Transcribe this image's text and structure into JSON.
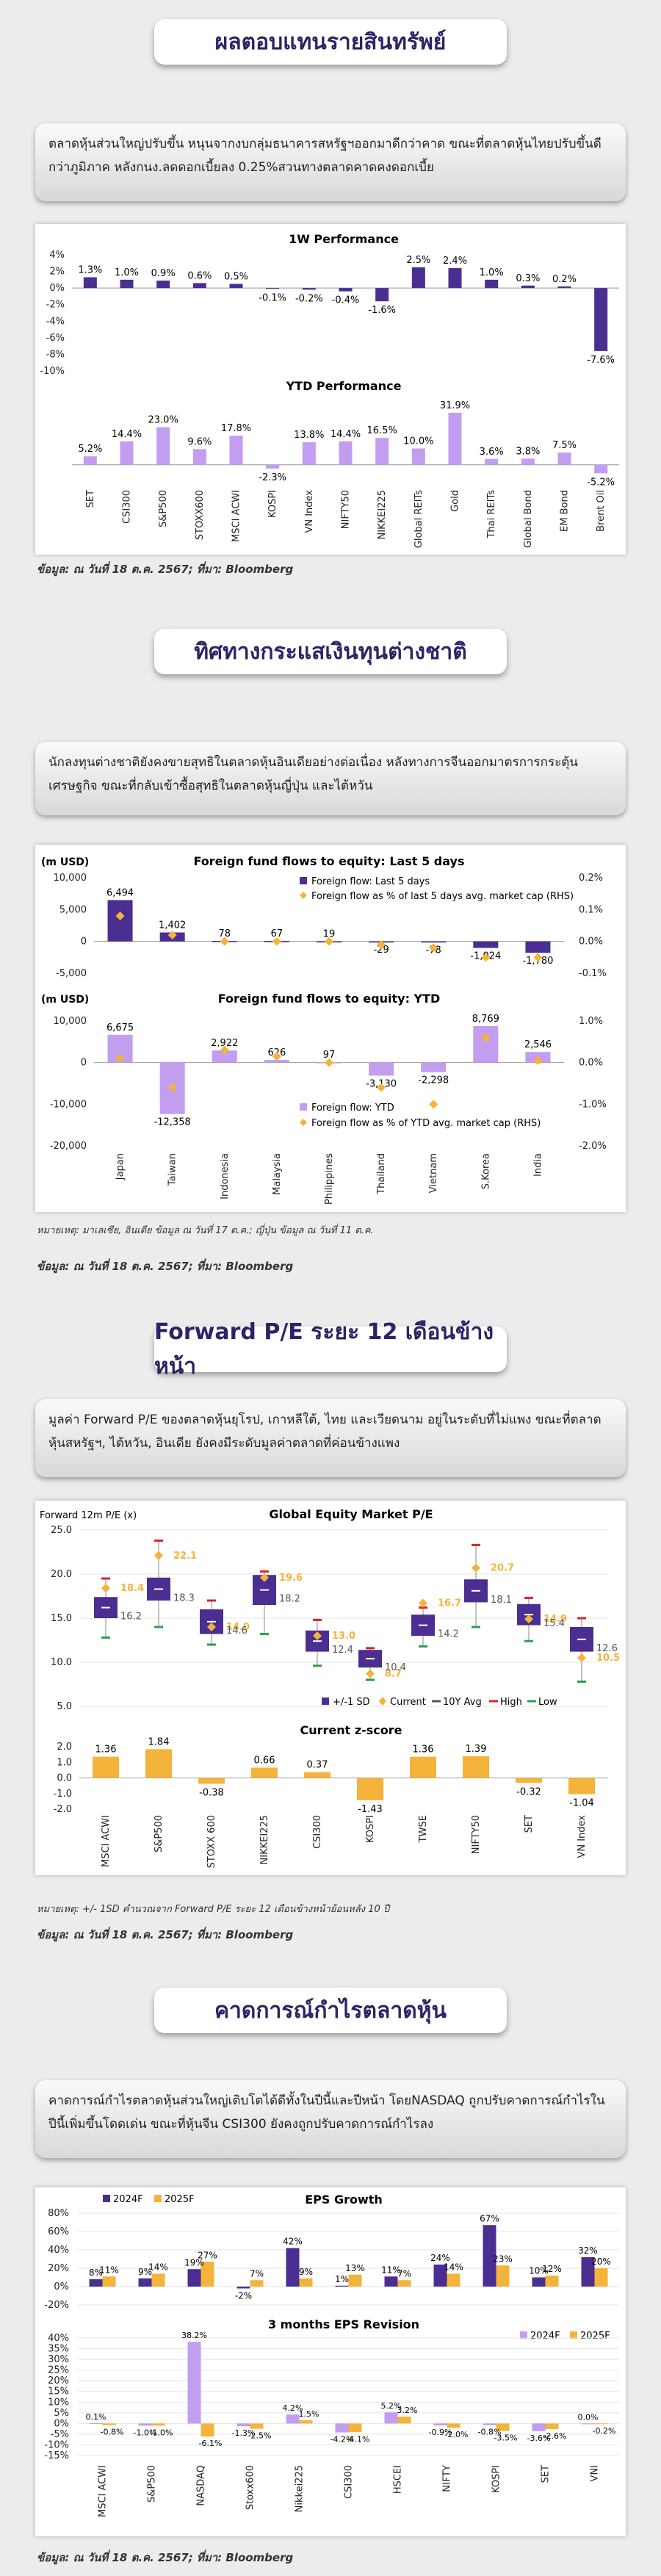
{
  "sections": {
    "s1_title": "ผลตอบแทนรายสินทรัพย์",
    "s1_desc": "ตลาดหุ้นส่วนใหญ่ปรับขึ้น หนุนจากงบกลุ่มธนาคารสหรัฐฯออกมาดีกว่าคาด ขณะที่ตลาดหุ้นไทยปรับขึ้นดีกว่าภูมิภาค หลังกนง.ลดดอกเบี้ยลง 0.25%สวนทางตลาดคาดคงดอกเบี้ย",
    "s1_source": "ข้อมูล: ณ วันที่ 18 ต.ค. 2567; ที่มา: Bloomberg",
    "s2_title": "ทิศทางกระแสเงินทุนต่างชาติ",
    "s2_desc": "นักลงทุนต่างชาติยังคงขายสุทธิในตลาดหุ้นอินเดียอย่างต่อเนื่อง หลังทางการจีนออกมาตรการกระตุ้นเศรษฐกิจ ขณะที่กลับเข้าซื้อสุทธิในตลาดหุ้นญี่ปุ่น และไต้หวัน",
    "s2_note": "หมายเหตุ: มาเลเซีย, อินเดีย ข้อมูล ณ วันที่ 17 ต.ค.; ญี่ปุ่น ข้อมูล ณ วันที่ 11 ต.ค.",
    "s2_source": "ข้อมูล: ณ วันที่ 18 ต.ค. 2567; ที่มา: Bloomberg",
    "s3_title": "Forward P/E ระยะ 12 เดือนข้างหน้า",
    "s3_desc": "มูลค่า Forward P/E ของตลาดหุ้นยุโรป, เกาหลีใต้, ไทย และเวียดนาม อยู่ในระดับที่ไม่แพง ขณะที่ตลาดหุ้นสหรัฐฯ, ไต้หวัน, อินเดีย ยังคงมีระดับมูลค่าตลาดที่ค่อนข้างแพง",
    "s3_note": "หมายเหตุ: +/- 1SD คำนวณจาก Forward P/E ระยะ 12 เดือนข้างหน้าย้อนหลัง 10 ปี",
    "s3_source": "ข้อมูล: ณ วันที่ 18 ต.ค. 2567; ที่มา: Bloomberg",
    "s4_title": "คาดการณ์กำไรตลาดหุ้น",
    "s4_desc": "คาดการณ์กำไรตลาดหุ้นส่วนใหญ่เติบโตได้ดีทั้งในปีนี้และปีหน้า โดยNASDAQ ถูกปรับคาดการณ์กำไรในปีนี้เพิ่มขึ้นโดดเด่น ขณะที่หุ้นจีน CSI300 ยังคงถูกปรับคาดการณ์กำไรลง",
    "s4_source": "ข้อมูล: ณ วันที่ 18 ต.ค. 2567; ที่มา: Bloomberg"
  },
  "colors": {
    "purple": "#4b2e91",
    "light_purple": "#c29df0",
    "orange": "#f4b33a",
    "green": "#2e9e4a",
    "red": "#e0202a",
    "title": "#2a2566"
  },
  "chart_data": [
    {
      "type": "bar",
      "title": "1W Performance",
      "categories": [
        "SET",
        "CSI300",
        "S&P500",
        "STOXX600",
        "MSCI ACWI",
        "KOSPI",
        "VN Index",
        "NIFTY50",
        "NIKKEI225",
        "Global REITs",
        "Gold",
        "Thai REITs",
        "Global Bond",
        "EM Bond",
        "Brent Oil"
      ],
      "values": [
        1.3,
        1.0,
        0.9,
        0.6,
        0.5,
        -0.1,
        -0.2,
        -0.4,
        -1.6,
        2.5,
        2.4,
        1.0,
        0.3,
        0.2,
        -7.6
      ],
      "labels": [
        "1.3%",
        "1.0%",
        "0.9%",
        "0.6%",
        "0.5%",
        "-0.1%",
        "-0.2%",
        "-0.4%",
        "-1.6%",
        "2.5%",
        "2.4%",
        "1.0%",
        "0.3%",
        "0.2%",
        "-7.6%"
      ],
      "yticks": [
        "4%",
        "2%",
        "0%",
        "-2%",
        "-4%",
        "-6%",
        "-8%",
        "-10%"
      ],
      "ylim": [
        -10,
        4
      ]
    },
    {
      "type": "bar",
      "title": "YTD Performance",
      "categories": [
        "SET",
        "CSI300",
        "S&P500",
        "STOXX600",
        "MSCI ACWI",
        "KOSPI",
        "VN Index",
        "NIFTY50",
        "NIKKEI225",
        "Global REITs",
        "Gold",
        "Thai REITs",
        "Global Bond",
        "EM Bond",
        "Brent Oil"
      ],
      "values": [
        5.2,
        14.4,
        23.0,
        9.6,
        17.8,
        -2.3,
        13.8,
        14.4,
        16.5,
        10.0,
        31.9,
        3.6,
        3.8,
        7.5,
        -5.2
      ],
      "labels": [
        "5.2%",
        "14.4%",
        "23.0%",
        "9.6%",
        "17.8%",
        "-2.3%",
        "13.8%",
        "14.4%",
        "16.5%",
        "10.0%",
        "31.9%",
        "3.6%",
        "3.8%",
        "7.5%",
        "-5.2%"
      ],
      "ylim": [
        -10,
        35
      ]
    },
    {
      "type": "bar",
      "title": "Foreign fund flows to equity: Last 5 days",
      "unit": "(m USD)",
      "categories": [
        "Japan",
        "Taiwan",
        "Indonesia",
        "Malaysia",
        "Philippines",
        "Thailand",
        "Vietnam",
        "S.Korea",
        "India"
      ],
      "series": [
        {
          "name": "Foreign flow: Last 5 days",
          "values": [
            6494,
            1402,
            78,
            67,
            19,
            -29,
            -78,
            -1024,
            -1780
          ]
        },
        {
          "name": "Foreign flow as % of last 5 days avg. market cap (RHS)",
          "values": [
            0.08,
            0.02,
            0.0,
            0.0,
            0.0,
            -0.01,
            -0.02,
            -0.05,
            -0.05
          ]
        }
      ],
      "labels": [
        "6,494",
        "1,402",
        "78",
        "67",
        "19",
        "-29",
        "-78",
        "-1,024",
        "-1,780"
      ],
      "yticks": [
        "10,000",
        "5,000",
        "0",
        "-5,000"
      ],
      "ylim": [
        -5000,
        10000
      ],
      "y2ticks": [
        "0.2%",
        "0.1%",
        "0.0%",
        "-0.1%"
      ],
      "y2lim": [
        -0.1,
        0.2
      ]
    },
    {
      "type": "bar",
      "title": "Foreign fund flows to equity: YTD",
      "unit": "(m USD)",
      "categories": [
        "Japan",
        "Taiwan",
        "Indonesia",
        "Malaysia",
        "Philippines",
        "Thailand",
        "Vietnam",
        "S.Korea",
        "India"
      ],
      "series": [
        {
          "name": "Foreign flow: YTD",
          "values": [
            6675,
            -12358,
            2922,
            626,
            97,
            -3130,
            -2298,
            8769,
            2546
          ]
        },
        {
          "name": "Foreign flow as % of YTD avg. market cap (RHS)",
          "values": [
            0.1,
            -0.6,
            0.3,
            0.15,
            0.0,
            -0.6,
            -1.0,
            0.6,
            0.05
          ]
        }
      ],
      "labels": [
        "6,675",
        "-12,358",
        "2,922",
        "626",
        "97",
        "-3,130",
        "-2,298",
        "8,769",
        "2,546"
      ],
      "yticks": [
        "10,000",
        "0",
        "-10,000",
        "-20,000"
      ],
      "ylim": [
        -20000,
        10000
      ],
      "y2ticks": [
        "1.0%",
        "0.0%",
        "-1.0%",
        "-2.0%"
      ],
      "y2lim": [
        -2,
        1
      ]
    },
    {
      "type": "box",
      "title": "Global Equity Market P/E",
      "ylabel": "Forward 12m P/E (x)",
      "categories": [
        "MSCI ACWI",
        "S&P500",
        "STOXX 600",
        "NIKKEI225",
        "CSI300",
        "KOSPI",
        "TWSE",
        "NIFTY50",
        "SET",
        "VN Index"
      ],
      "avg": [
        16.2,
        18.3,
        14.6,
        18.2,
        12.4,
        10.4,
        14.2,
        18.1,
        15.4,
        12.6
      ],
      "current": [
        18.4,
        22.1,
        14.0,
        19.6,
        13.0,
        8.7,
        16.7,
        20.7,
        14.9,
        10.5
      ],
      "sd_low": [
        15.0,
        17.0,
        13.2,
        16.5,
        11.2,
        9.4,
        13.0,
        16.8,
        14.2,
        11.2
      ],
      "sd_high": [
        17.4,
        19.6,
        16.0,
        19.9,
        13.6,
        11.4,
        15.4,
        19.4,
        16.6,
        14.0
      ],
      "high": [
        19.5,
        23.8,
        17.0,
        20.3,
        14.8,
        11.6,
        16.2,
        23.3,
        17.3,
        15.0
      ],
      "low": [
        12.8,
        14.0,
        12.0,
        13.2,
        9.6,
        8.0,
        11.8,
        14.0,
        12.4,
        7.8
      ],
      "cur_labels": [
        "18.4",
        "22.1",
        "14.0",
        "19.6",
        "13.0",
        "8.7",
        "16.7",
        "20.7",
        "14.9",
        "10.5"
      ],
      "avg_labels": [
        "16.2",
        "18.3",
        "14.6",
        "18.2",
        "12.4",
        "10.4",
        "14.2",
        "18.1",
        "15.4",
        "12.6"
      ],
      "yticks": [
        "25.0",
        "20.0",
        "15.0",
        "10.0",
        "5.0"
      ],
      "ylim": [
        5,
        25
      ],
      "legend": [
        "+/-1 SD",
        "Current",
        "10Y Avg",
        "High",
        "Low"
      ]
    },
    {
      "type": "bar",
      "title": "Current z-score",
      "categories": [
        "MSCI ACWI",
        "S&P500",
        "STOXX 600",
        "NIKKEI225",
        "CSI300",
        "KOSPI",
        "TWSE",
        "NIFTY50",
        "SET",
        "VN Index"
      ],
      "values": [
        1.36,
        1.84,
        -0.38,
        0.66,
        0.37,
        -1.43,
        1.36,
        1.39,
        -0.32,
        -1.04
      ],
      "labels": [
        "1.36",
        "1.84",
        "-0.38",
        "0.66",
        "0.37",
        "-1.43",
        "1.36",
        "1.39",
        "-0.32",
        "-1.04"
      ],
      "yticks": [
        "2.0",
        "1.0",
        "0.0",
        "-1.0",
        "-2.0"
      ],
      "ylim": [
        -2,
        2
      ]
    },
    {
      "type": "bar",
      "title": "EPS Growth",
      "categories": [
        "MSCI ACWI",
        "S&P500",
        "NASDAQ",
        "Stoxx600",
        "Nikkei225",
        "CSI300",
        "HSCEI",
        "NIFTY",
        "KOSPI",
        "SET",
        "VNI"
      ],
      "series": [
        {
          "name": "2024F",
          "values": [
            8,
            9,
            19,
            -2,
            42,
            1,
            11,
            24,
            67,
            10,
            32
          ]
        },
        {
          "name": "2025F",
          "values": [
            11,
            14,
            27,
            7,
            9,
            13,
            7,
            14,
            23,
            12,
            20
          ]
        }
      ],
      "labels24": [
        "8%",
        "9%",
        "19%",
        "-2%",
        "42%",
        "1%",
        "11%",
        "24%",
        "67%",
        "10%",
        "32%"
      ],
      "labels25": [
        "11%",
        "14%",
        "27%",
        "7%",
        "9%",
        "13%",
        "7%",
        "14%",
        "23%",
        "12%",
        "20%"
      ],
      "yticks": [
        "80%",
        "60%",
        "40%",
        "20%",
        "0%",
        "-20%"
      ],
      "ylim": [
        -20,
        80
      ]
    },
    {
      "type": "bar",
      "title": "3 months EPS Revision",
      "categories": [
        "MSCI ACWI",
        "S&P500",
        "NASDAQ",
        "Stoxx600",
        "Nikkei225",
        "CSI300",
        "HSCEI",
        "NIFTY",
        "KOSPI",
        "SET",
        "VNI"
      ],
      "series": [
        {
          "name": "2024F",
          "values": [
            0.1,
            -1.0,
            38.2,
            -1.3,
            4.2,
            -4.2,
            5.2,
            -0.9,
            -0.8,
            -3.6,
            0.0
          ]
        },
        {
          "name": "2025F",
          "values": [
            -0.8,
            -1.0,
            -6.1,
            -2.5,
            1.5,
            -4.1,
            3.2,
            -2.0,
            -3.5,
            -2.6,
            -0.2
          ]
        }
      ],
      "labels24": [
        "0.1%",
        "-1.0%",
        "38.2%",
        "-1.3%",
        "4.2%",
        "-4.2%",
        "5.2%",
        "-0.9%",
        "-0.8%",
        "-3.6%",
        "0.0%"
      ],
      "labels25": [
        "-0.8%",
        "-1.0%",
        "-6.1%",
        "-2.5%",
        "1.5%",
        "-4.1%",
        "3.2%",
        "-2.0%",
        "-3.5%",
        "-2.6%",
        "-0.2%"
      ],
      "yticks": [
        "40%",
        "35%",
        "30%",
        "25%",
        "20%",
        "15%",
        "10%",
        "5%",
        "0%",
        "-5%",
        "-10%",
        "-15%"
      ],
      "ylim": [
        -15,
        40
      ]
    }
  ]
}
